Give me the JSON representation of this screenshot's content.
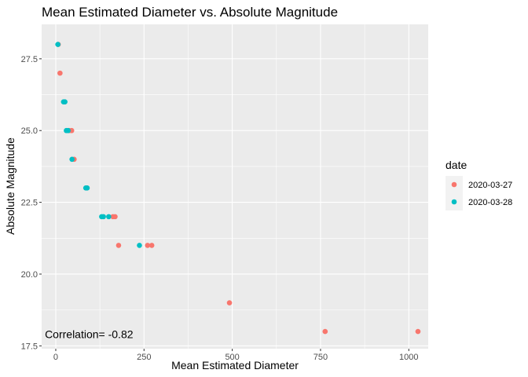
{
  "chart_data": {
    "type": "scatter",
    "title": "Mean Estimated Diameter vs. Absolute Magnitude",
    "xlabel": "Mean Estimated Diameter",
    "ylabel": "Absolute Magnitude",
    "xlim": [
      -40,
      1055
    ],
    "ylim": [
      17.4,
      28.7
    ],
    "x_ticks": [
      0,
      250,
      500,
      750,
      1000
    ],
    "x_tick_labels": [
      "0",
      "250",
      "500",
      "750",
      "1000"
    ],
    "y_ticks": [
      17.5,
      20.0,
      22.5,
      25.0,
      27.5
    ],
    "y_tick_labels": [
      "17.5",
      "20.0",
      "22.5",
      "25.0",
      "27.5"
    ],
    "grid": true,
    "legend": {
      "title": "date",
      "placement": "right"
    },
    "annotation": {
      "text": "Correlation= -0.82",
      "x": 250,
      "y": 17.9
    },
    "series": [
      {
        "name": "2020-03-27",
        "color": "#F8766D",
        "points": [
          {
            "x": 7,
            "y": 28
          },
          {
            "x": 12,
            "y": 27
          },
          {
            "x": 25,
            "y": 26
          },
          {
            "x": 38,
            "y": 25
          },
          {
            "x": 45,
            "y": 25
          },
          {
            "x": 52,
            "y": 24
          },
          {
            "x": 88,
            "y": 23
          },
          {
            "x": 162,
            "y": 22
          },
          {
            "x": 168,
            "y": 22
          },
          {
            "x": 178,
            "y": 21
          },
          {
            "x": 260,
            "y": 21
          },
          {
            "x": 272,
            "y": 21
          },
          {
            "x": 492,
            "y": 19
          },
          {
            "x": 763,
            "y": 18
          },
          {
            "x": 1026,
            "y": 18
          }
        ]
      },
      {
        "name": "2020-03-28",
        "color": "#00BFC4",
        "points": [
          {
            "x": 6,
            "y": 28
          },
          {
            "x": 22,
            "y": 26
          },
          {
            "x": 26,
            "y": 26
          },
          {
            "x": 30,
            "y": 25
          },
          {
            "x": 35,
            "y": 25
          },
          {
            "x": 46,
            "y": 24
          },
          {
            "x": 85,
            "y": 23
          },
          {
            "x": 89,
            "y": 23
          },
          {
            "x": 130,
            "y": 22
          },
          {
            "x": 135,
            "y": 22
          },
          {
            "x": 150,
            "y": 22
          },
          {
            "x": 237,
            "y": 21
          }
        ]
      }
    ]
  }
}
